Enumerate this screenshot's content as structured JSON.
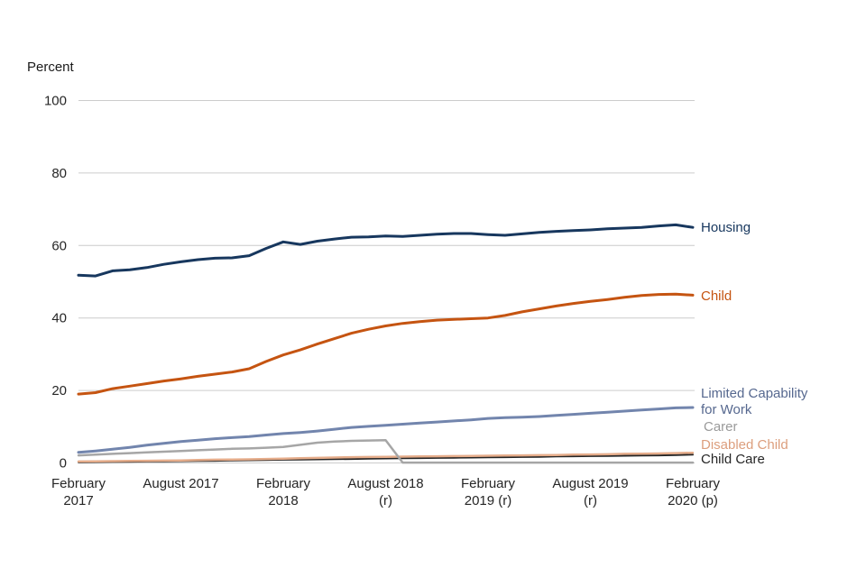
{
  "chart_data": {
    "type": "line",
    "title": "",
    "ylabel": "Percent",
    "xlabel": "",
    "ylim": [
      0,
      100
    ],
    "yticks": [
      0,
      20,
      40,
      60,
      80,
      100
    ],
    "grid": "horizontal-only",
    "legend_position": "right-end-of-line-labels",
    "x_range_note": "monthly points from February 2017 to February 2020",
    "points_per_series": 37,
    "xtick_labels": [
      [
        "February",
        "2017"
      ],
      [
        "August 2017"
      ],
      [
        "February",
        "2018"
      ],
      [
        "August 2018",
        "(r)"
      ],
      [
        "February",
        "2019 (r)"
      ],
      [
        "August 2019",
        "(r)"
      ],
      [
        "February",
        "2020 (p)"
      ]
    ],
    "axis_text_color": "#262626",
    "gridline_color": "#cccccc",
    "series": [
      {
        "id": "housing",
        "name": "Housing",
        "color": "#17375e",
        "label_color": "#17375e",
        "values": [
          51.8,
          51.6,
          53.0,
          53.3,
          53.9,
          54.8,
          55.5,
          56.1,
          56.5,
          56.6,
          57.2,
          59.2,
          61.0,
          60.3,
          61.2,
          61.8,
          62.3,
          62.4,
          62.6,
          62.5,
          62.8,
          63.1,
          63.3,
          63.3,
          63.0,
          62.8,
          63.2,
          63.6,
          63.9,
          64.1,
          64.3,
          64.6,
          64.8,
          65.0,
          65.4,
          65.7,
          65.0
        ]
      },
      {
        "id": "child",
        "name": "Child",
        "color": "#c55411",
        "label_color": "#c55411",
        "values": [
          19.0,
          19.4,
          20.5,
          21.2,
          21.9,
          22.6,
          23.2,
          23.9,
          24.5,
          25.1,
          26.0,
          28.0,
          29.8,
          31.2,
          32.8,
          34.3,
          35.8,
          36.9,
          37.8,
          38.5,
          39.0,
          39.4,
          39.6,
          39.8,
          40.0,
          40.7,
          41.7,
          42.5,
          43.3,
          44.0,
          44.6,
          45.1,
          45.7,
          46.2,
          46.5,
          46.6,
          46.3
        ]
      },
      {
        "id": "limited_capability_for_work",
        "name": "Limited Capability for Work",
        "label_lines": [
          "Limited Capability",
          "for Work"
        ],
        "color": "#7285ad",
        "label_color": "#56688f",
        "values": [
          2.9,
          3.3,
          3.8,
          4.3,
          4.9,
          5.4,
          5.9,
          6.3,
          6.7,
          7.0,
          7.3,
          7.7,
          8.1,
          8.4,
          8.8,
          9.3,
          9.8,
          10.1,
          10.4,
          10.7,
          11.0,
          11.3,
          11.6,
          11.9,
          12.3,
          12.5,
          12.6,
          12.8,
          13.1,
          13.4,
          13.7,
          14.0,
          14.3,
          14.6,
          14.9,
          15.2,
          15.3
        ]
      },
      {
        "id": "carer",
        "name": "Carer",
        "color": "#a6a6a6",
        "label_color": "#9a9a9a",
        "values": [
          2.1,
          2.3,
          2.5,
          2.7,
          2.9,
          3.1,
          3.3,
          3.5,
          3.7,
          3.9,
          4.0,
          4.2,
          4.4,
          5.0,
          5.6,
          5.9,
          6.1,
          6.2,
          6.3,
          0.1,
          0.1,
          0.1,
          0.1,
          0.1,
          0.1,
          0.1,
          0.1,
          0.1,
          0.1,
          0.1,
          0.1,
          0.1,
          0.1,
          0.1,
          0.1,
          0.1,
          0.1
        ]
      },
      {
        "id": "disabled_child",
        "name": "Disabled Child",
        "color": "#e5ac8a",
        "label_color": "#dc9e7d",
        "values": [
          0.4,
          0.45,
          0.5,
          0.55,
          0.6,
          0.65,
          0.7,
          0.8,
          0.9,
          0.95,
          1.0,
          1.1,
          1.2,
          1.3,
          1.4,
          1.5,
          1.6,
          1.65,
          1.7,
          1.75,
          1.8,
          1.85,
          1.9,
          1.95,
          2.0,
          2.05,
          2.1,
          2.15,
          2.2,
          2.3,
          2.35,
          2.4,
          2.5,
          2.55,
          2.6,
          2.7,
          2.8
        ]
      },
      {
        "id": "child_care",
        "name": "Child Care",
        "color": "#262626",
        "label_color": "#262626",
        "values": [
          0.2,
          0.25,
          0.3,
          0.35,
          0.4,
          0.45,
          0.5,
          0.55,
          0.6,
          0.7,
          0.75,
          0.8,
          0.9,
          0.95,
          1.0,
          1.05,
          1.1,
          1.2,
          1.25,
          1.3,
          1.35,
          1.4,
          1.45,
          1.5,
          1.55,
          1.6,
          1.65,
          1.7,
          1.8,
          1.85,
          1.9,
          1.95,
          2.0,
          2.05,
          2.1,
          2.2,
          2.3
        ]
      }
    ]
  }
}
